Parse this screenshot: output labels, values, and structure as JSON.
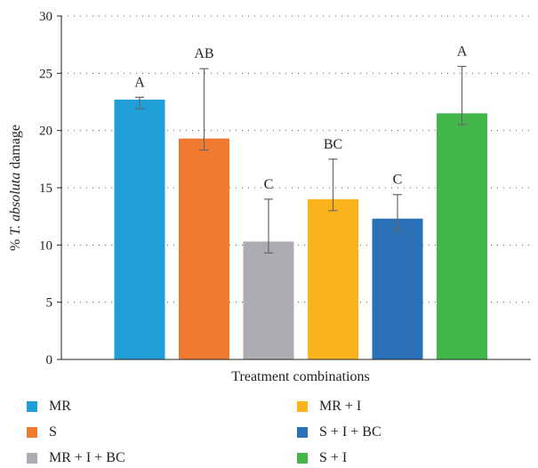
{
  "chart_data": {
    "type": "bar",
    "categories": [
      "MR",
      "S",
      "MR + I + BC",
      "MR + I",
      "S + I + BC",
      "S + I"
    ],
    "values": [
      22.7,
      19.3,
      10.3,
      14.0,
      12.3,
      21.5
    ],
    "error_low": [
      21.9,
      18.3,
      9.3,
      13.0,
      11.3,
      20.5
    ],
    "error_high": [
      22.9,
      25.4,
      14.0,
      17.5,
      14.4,
      25.6
    ],
    "significance": [
      "A",
      "AB",
      "C",
      "BC",
      "C",
      "A"
    ],
    "colors": [
      "#1f9ed8",
      "#f07a30",
      "#acadb0",
      "#fbb31c",
      "#2970b7",
      "#43b649"
    ],
    "xlabel": "Treatment combinations",
    "ylabel_prefix": "% ",
    "ylabel_italic": "T. absoluta",
    "ylabel_suffix": " damage",
    "ylim": [
      0,
      30
    ],
    "yticks": [
      0,
      5,
      10,
      15,
      20,
      25,
      30
    ],
    "grid": true,
    "legend_position": "bottom"
  }
}
